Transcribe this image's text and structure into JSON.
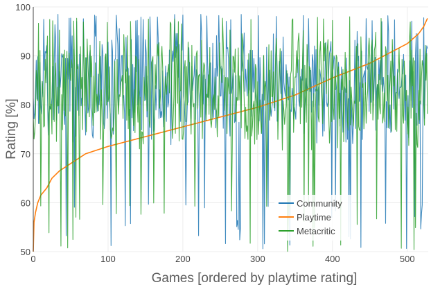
{
  "chart_data": {
    "type": "line",
    "title": "",
    "xlabel": "Games [ordered by playtime rating]",
    "ylabel": "Rating [%]",
    "xlim": [
      0,
      528
    ],
    "ylim": [
      50,
      100
    ],
    "xticks": [
      0,
      100,
      200,
      300,
      400,
      500
    ],
    "yticks": [
      50,
      60,
      70,
      80,
      90,
      100
    ],
    "grid": true,
    "legend_position": "bottom-right",
    "n_points": 528,
    "series": [
      {
        "name": "Community",
        "color": "#1f77b4",
        "seed": 7,
        "mean": 84,
        "spread": 10,
        "min": 50,
        "max": 98.5
      },
      {
        "name": "Playtime",
        "color": "#ff7f0e",
        "points": [
          [
            0,
            50
          ],
          [
            1,
            56
          ],
          [
            3,
            58
          ],
          [
            6,
            60
          ],
          [
            10,
            61.5
          ],
          [
            18,
            63
          ],
          [
            25,
            65
          ],
          [
            35,
            66.5
          ],
          [
            50,
            68
          ],
          [
            70,
            70
          ],
          [
            100,
            71.5
          ],
          [
            150,
            73.5
          ],
          [
            200,
            75.5
          ],
          [
            250,
            77.5
          ],
          [
            300,
            79.5
          ],
          [
            350,
            82
          ],
          [
            400,
            85.5
          ],
          [
            450,
            88.5
          ],
          [
            500,
            92.5
          ],
          [
            515,
            94.5
          ],
          [
            522,
            96
          ],
          [
            528,
            98
          ]
        ]
      },
      {
        "name": "Metacritic",
        "color": "#2ca02c",
        "seed": 13,
        "mean": 83,
        "spread": 10,
        "min": 50,
        "max": 98
      }
    ]
  }
}
